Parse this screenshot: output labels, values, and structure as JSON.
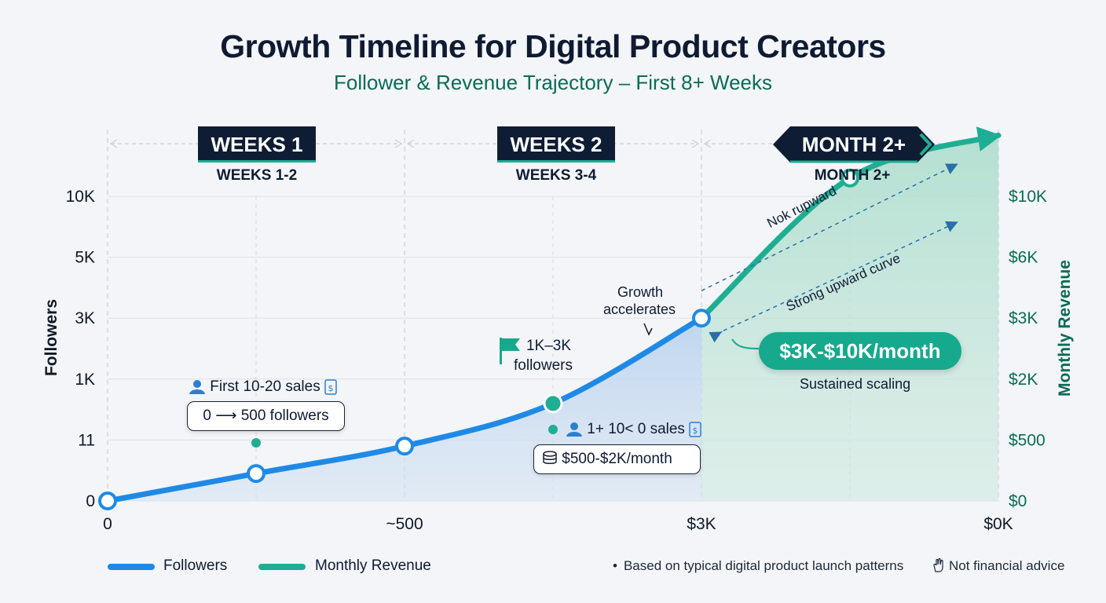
{
  "title": "Growth Timeline for Digital Product Creators",
  "subtitle": "Follower & Revenue Trajectory – First 8+ Weeks",
  "phases": [
    {
      "badge": "WEEKS 1",
      "label": "WEEKS 1-2"
    },
    {
      "badge": "WEEKS 2",
      "label": "WEEKS 3-4"
    },
    {
      "badge": "MONTH 2+",
      "label": "MONTH 2+"
    }
  ],
  "annotations": {
    "first_sales": "First 10-20 sales",
    "followers_0_500": "0 ⟶ 500 followers",
    "flag_line1": "1K–3K",
    "flag_line2": "followers",
    "growth_line1": "Growth",
    "growth_line2": "accelerates",
    "sales_100": "1+ 10< 0 sales",
    "revenue_small": "$500-$2K/month",
    "revenue_big": "$3K-$10K/month",
    "sustained": "Sustained scaling",
    "arrow_upper": "Nok rupward",
    "arrow_lower": "Strong upward curve"
  },
  "legend": [
    {
      "label": "Followers",
      "color": "#1f8ae6"
    },
    {
      "label": "Monthly Revenue",
      "color": "#1fae93"
    }
  ],
  "footer": {
    "note1": "Based on typical digital product launch patterns",
    "note2": "Not financial advice"
  },
  "colors": {
    "followers": "#1f8ae6",
    "revenue": "#1fae93",
    "navy": "#0f1d34",
    "revenue_text": "#0b6b57"
  },
  "chart_data": {
    "type": "line",
    "x_ticks": [
      "0",
      "~500",
      "$3K",
      "$0K"
    ],
    "ylabel": "Followers",
    "y2label": "Monthly Revenue",
    "y_ticks": [
      "0",
      "11",
      "1K",
      "3K",
      "5K",
      "10K"
    ],
    "y2_ticks": [
      "$0",
      "$500",
      "$2K",
      "$3K",
      "$6K",
      "$10K"
    ],
    "grid": true,
    "legend_position": "bottom-left",
    "series": [
      {
        "name": "Followers",
        "x": [
          0,
          1,
          2,
          3,
          4
        ],
        "y": [
          0,
          0.45,
          0.9,
          1.6,
          3
        ]
      },
      {
        "name": "Monthly Revenue",
        "x": [
          4,
          5,
          6
        ],
        "y": [
          3,
          5.3,
          6
        ]
      }
    ],
    "y_scale_note": "y values expressed in tick-index units: 0=0, 1=11, 2=1K, 3=3K, 4=5K, 5=10K"
  }
}
